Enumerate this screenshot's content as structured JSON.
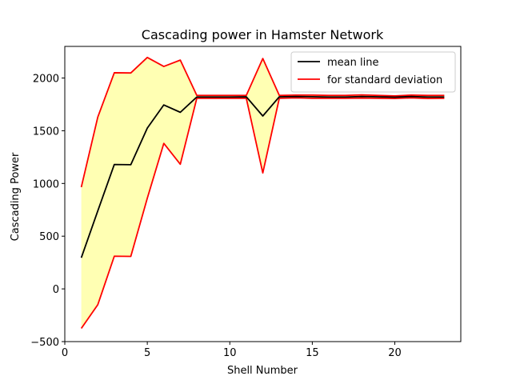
{
  "chart_data": {
    "type": "line",
    "title": "Cascading power in Hamster Network",
    "xlabel": "Shell Number",
    "ylabel": "Cascading Power",
    "xlim": [
      0,
      24
    ],
    "ylim": [
      -500,
      2300
    ],
    "xticks": [
      0,
      5,
      10,
      15,
      20
    ],
    "yticks": [
      -500,
      0,
      500,
      1000,
      1500,
      2000
    ],
    "grid": false,
    "legend_position": "top-right",
    "x": [
      1,
      2,
      3,
      4,
      5,
      6,
      7,
      8,
      9,
      10,
      11,
      12,
      13,
      14,
      15,
      16,
      17,
      18,
      19,
      20,
      21,
      22,
      23
    ],
    "series": [
      {
        "name": "mean line",
        "color": "#000000",
        "values": [
          295,
          740,
          1180,
          1178,
          1525,
          1745,
          1675,
          1820,
          1820,
          1820,
          1822,
          1640,
          1822,
          1825,
          1823,
          1820,
          1820,
          1825,
          1822,
          1818,
          1825,
          1820,
          1820
        ]
      },
      {
        "name": "for standard deviation",
        "color": "#ff0000",
        "upper": [
          965,
          1630,
          2050,
          2048,
          2195,
          2110,
          2170,
          1835,
          1835,
          1835,
          1835,
          2185,
          1835,
          1838,
          1838,
          1835,
          1835,
          1840,
          1835,
          1830,
          1838,
          1835,
          1835
        ],
        "lower": [
          -375,
          -150,
          310,
          308,
          860,
          1380,
          1182,
          1808,
          1808,
          1808,
          1808,
          1100,
          1808,
          1812,
          1808,
          1808,
          1808,
          1810,
          1808,
          1806,
          1812,
          1806,
          1808
        ]
      }
    ],
    "fill_color": "#ffffb3"
  }
}
